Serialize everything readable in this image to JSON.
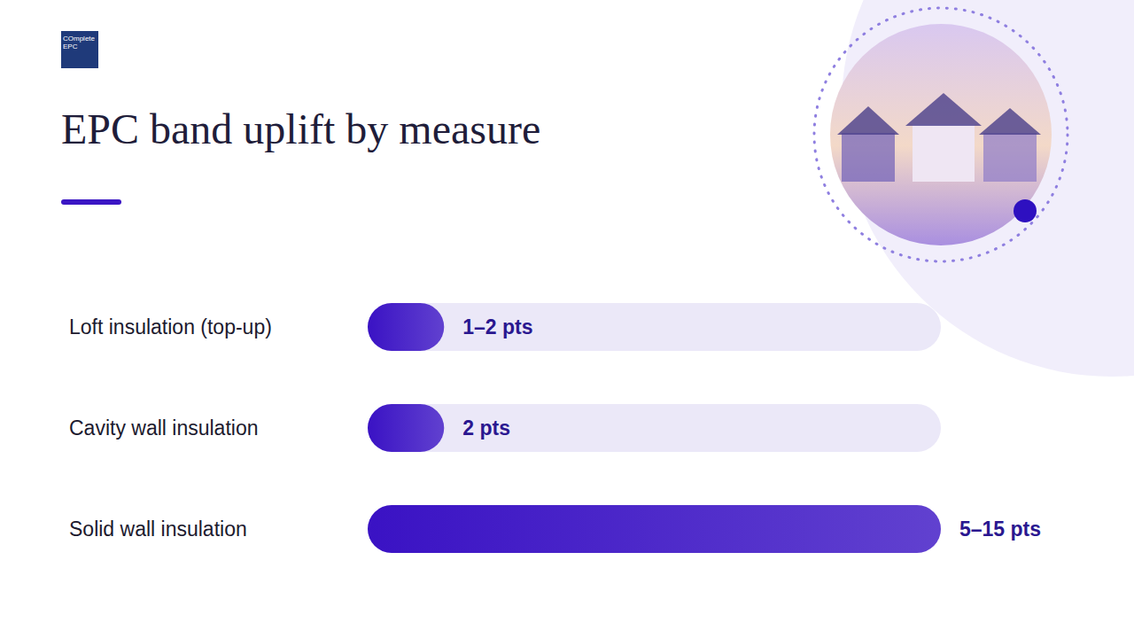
{
  "title": "EPC band uplift by measure",
  "logo": "COmplete EPC",
  "chart_data": {
    "type": "bar",
    "orientation": "horizontal",
    "categories": [
      "Loft insulation (top-up)",
      "Cavity wall insulation",
      "Solid wall insulation"
    ],
    "values": [
      2,
      2,
      15
    ],
    "value_labels": [
      "1–2 pts",
      "2 pts",
      "5–15 pts"
    ],
    "data_labels": true,
    "xlim": [
      0,
      15
    ],
    "tick_labels": "y",
    "grid": false,
    "color": "#3a12c4"
  }
}
